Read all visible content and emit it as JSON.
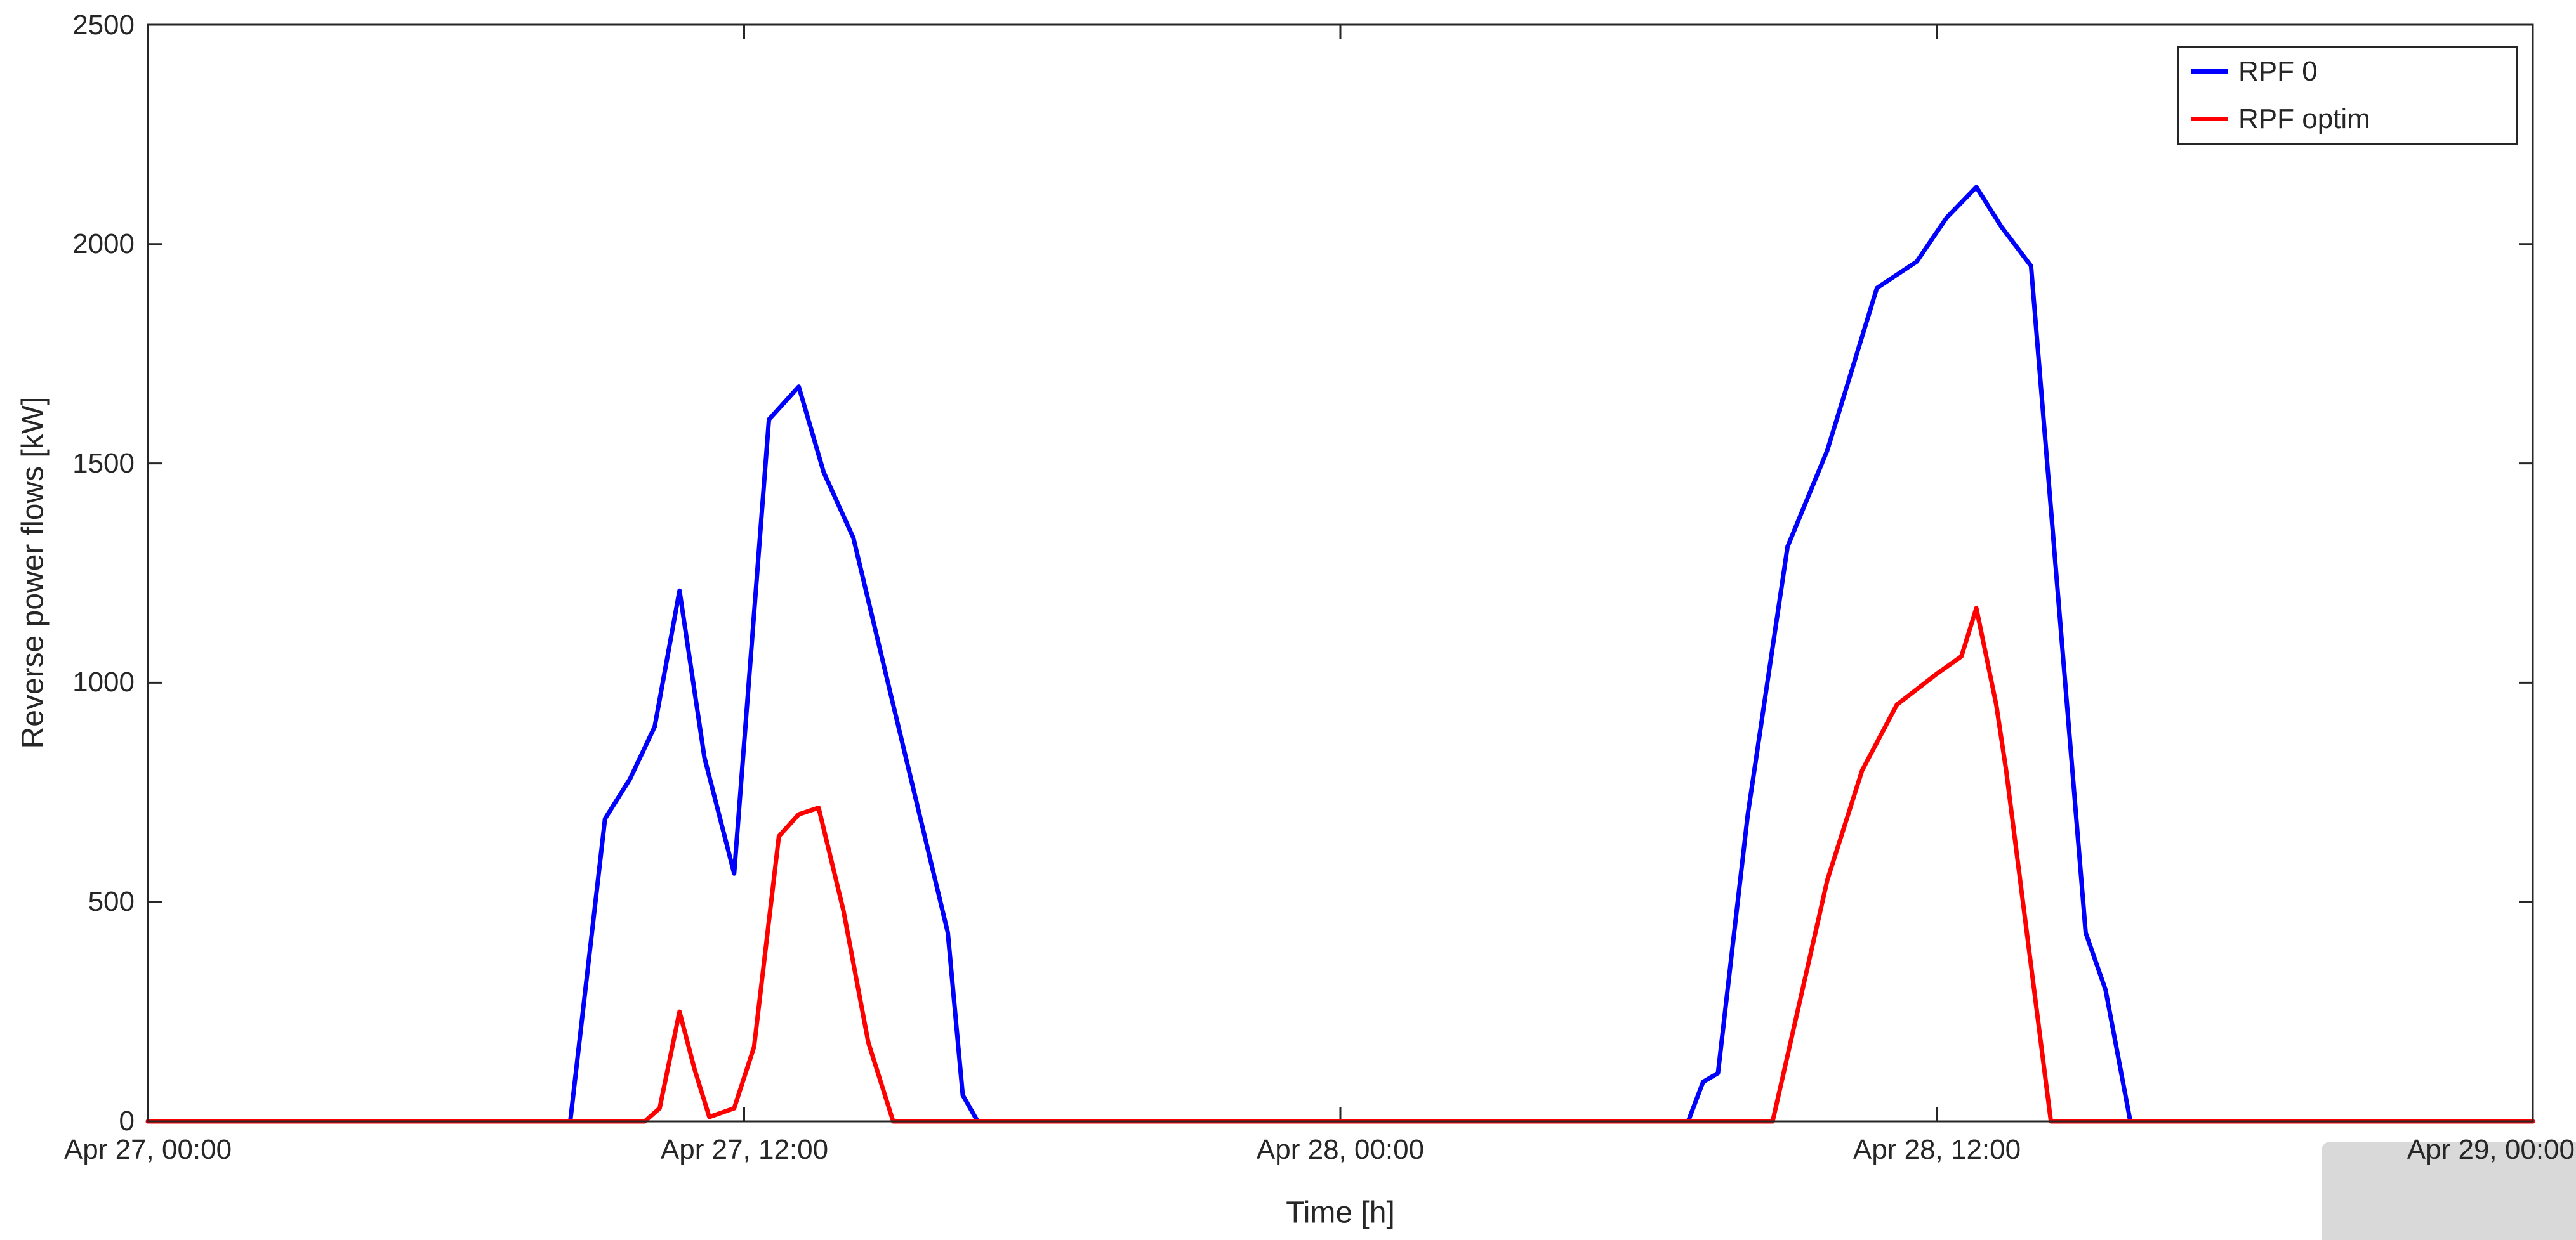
{
  "chart_data": {
    "type": "line",
    "title": "",
    "xlabel": "Time [h]",
    "ylabel": "Reverse power flows [kW]",
    "x_unit": "hours since Apr 27, 00:00",
    "xlim": [
      0,
      48
    ],
    "ylim": [
      0,
      2500
    ],
    "xticks": [
      0,
      12,
      24,
      36,
      48
    ],
    "xtick_labels": [
      "Apr 27, 00:00",
      "Apr 27, 12:00",
      "Apr 28, 00:00",
      "Apr 28, 12:00",
      "Apr 29, 00:00"
    ],
    "yticks": [
      0,
      500,
      1000,
      1500,
      2000,
      2500
    ],
    "ytick_labels": [
      "0",
      "500",
      "1000",
      "1500",
      "2000",
      "2500"
    ],
    "grid": false,
    "box": true,
    "axis_color": "#262626",
    "background": "#ffffff",
    "legend_position": "top-right",
    "series": [
      {
        "id": "rpf-0",
        "name": "RPF 0",
        "color": "#0000ff",
        "points": [
          [
            0,
            0
          ],
          [
            2,
            0
          ],
          [
            4,
            0
          ],
          [
            6,
            0
          ],
          [
            8,
            0
          ],
          [
            8.5,
            0
          ],
          [
            9.2,
            690
          ],
          [
            9.7,
            780
          ],
          [
            10.2,
            900
          ],
          [
            10.7,
            1210
          ],
          [
            11.2,
            830
          ],
          [
            11.8,
            565
          ],
          [
            12.5,
            1600
          ],
          [
            13.1,
            1675
          ],
          [
            13.6,
            1480
          ],
          [
            14.2,
            1330
          ],
          [
            15.0,
            950
          ],
          [
            16.1,
            430
          ],
          [
            16.4,
            60
          ],
          [
            16.7,
            0
          ],
          [
            18,
            0
          ],
          [
            21,
            0
          ],
          [
            24,
            0
          ],
          [
            27,
            0
          ],
          [
            30,
            0
          ],
          [
            31.0,
            0
          ],
          [
            31.3,
            90
          ],
          [
            31.6,
            110
          ],
          [
            32.2,
            700
          ],
          [
            33.0,
            1310
          ],
          [
            33.8,
            1530
          ],
          [
            34.8,
            1900
          ],
          [
            35.6,
            1960
          ],
          [
            36.2,
            2060
          ],
          [
            36.8,
            2130
          ],
          [
            37.3,
            2040
          ],
          [
            37.9,
            1950
          ],
          [
            39.0,
            430
          ],
          [
            39.4,
            300
          ],
          [
            39.9,
            0
          ],
          [
            41,
            0
          ],
          [
            44,
            0
          ],
          [
            48,
            0
          ]
        ]
      },
      {
        "id": "rpf-optim",
        "name": "RPF optim",
        "color": "#ff0000",
        "points": [
          [
            0,
            0
          ],
          [
            3,
            0
          ],
          [
            6,
            0
          ],
          [
            9,
            0
          ],
          [
            10.0,
            0
          ],
          [
            10.3,
            30
          ],
          [
            10.7,
            250
          ],
          [
            11.0,
            120
          ],
          [
            11.3,
            10
          ],
          [
            11.8,
            30
          ],
          [
            12.2,
            170
          ],
          [
            12.7,
            650
          ],
          [
            13.1,
            700
          ],
          [
            13.5,
            715
          ],
          [
            14.0,
            480
          ],
          [
            14.5,
            180
          ],
          [
            15.0,
            0
          ],
          [
            17,
            0
          ],
          [
            20,
            0
          ],
          [
            24,
            0
          ],
          [
            28,
            0
          ],
          [
            32,
            0
          ],
          [
            32.7,
            0
          ],
          [
            33.3,
            300
          ],
          [
            33.8,
            550
          ],
          [
            34.5,
            800
          ],
          [
            35.2,
            950
          ],
          [
            36.0,
            1020
          ],
          [
            36.5,
            1060
          ],
          [
            36.8,
            1170
          ],
          [
            37.2,
            950
          ],
          [
            37.4,
            800
          ],
          [
            38.3,
            0
          ],
          [
            40,
            0
          ],
          [
            44,
            0
          ],
          [
            48,
            0
          ]
        ]
      }
    ]
  }
}
